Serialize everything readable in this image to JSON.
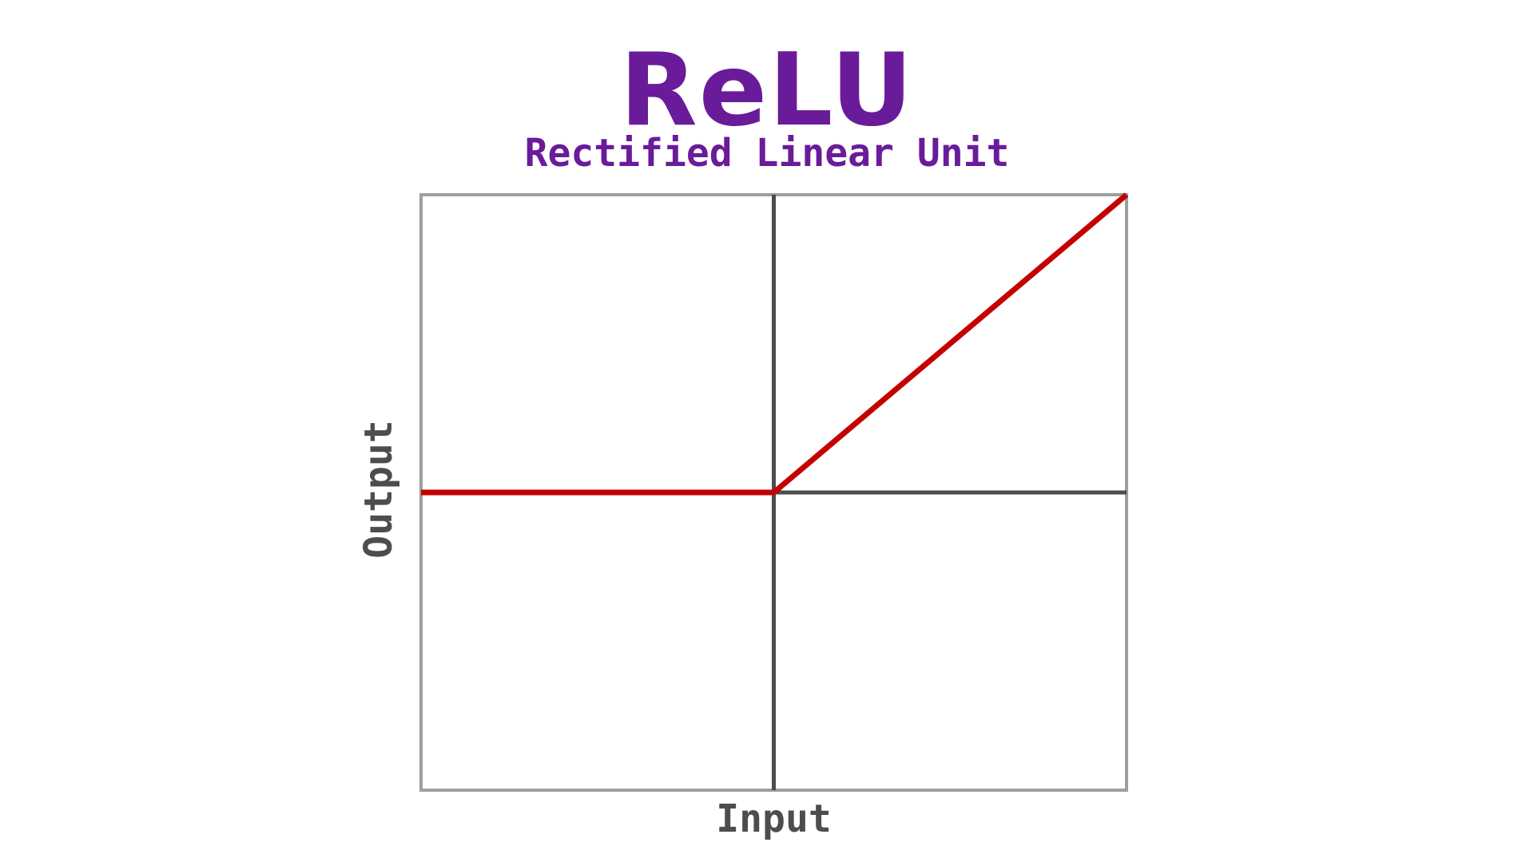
{
  "chart_data": {
    "type": "line",
    "title": "ReLU",
    "subtitle": "Rectified Linear Unit",
    "xlabel": "Input",
    "ylabel": "Output",
    "xlim": [
      -1,
      1
    ],
    "ylim": [
      -1,
      1
    ],
    "grid": false,
    "series": [
      {
        "x": [
          -1,
          0,
          1
        ],
        "y": [
          0,
          0,
          1
        ]
      }
    ],
    "colors": {
      "title": "#6a1b9a",
      "line": "#c40000",
      "frame": "#9e9e9e",
      "zero_axes": "#4d4d4d",
      "axis_label": "#4d4d4d"
    }
  }
}
